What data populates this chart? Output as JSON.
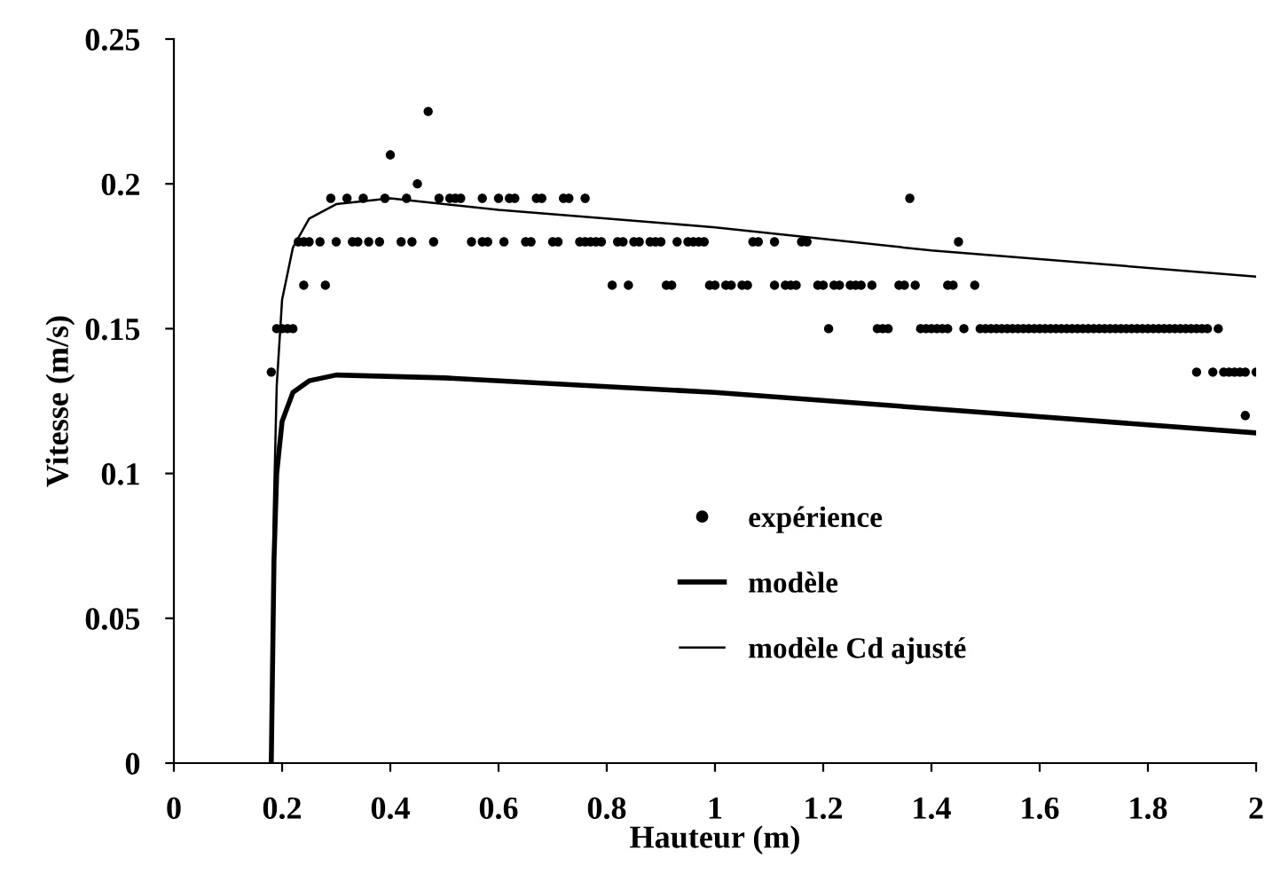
{
  "chart_data": {
    "type": "scatter",
    "xlabel": "Hauteur (m)",
    "ylabel": "Vitesse (m/s)",
    "xlim": [
      0,
      2
    ],
    "ylim": [
      0,
      0.25
    ],
    "xticks": [
      0,
      0.2,
      0.4,
      0.6,
      0.8,
      1,
      1.2,
      1.4,
      1.6,
      1.8,
      2
    ],
    "yticks": [
      0,
      0.05,
      0.1,
      0.15,
      0.2,
      0.25
    ],
    "grid": false,
    "legend": "bottom",
    "series": [
      {
        "name": "expérience",
        "color": "#000000",
        "marker": "circle",
        "x": [
          0.47,
          0.4,
          0.45,
          0.29,
          0.32,
          0.35,
          0.39,
          0.43,
          0.49,
          0.51,
          0.52,
          0.53,
          0.57,
          0.6,
          0.62,
          0.63,
          0.67,
          0.68,
          0.72,
          0.73,
          0.76,
          1.36,
          0.23,
          0.24,
          0.25,
          0.27,
          0.3,
          0.33,
          0.34,
          0.36,
          0.38,
          0.42,
          0.44,
          0.48,
          0.55,
          0.57,
          0.58,
          0.61,
          0.65,
          0.66,
          0.7,
          0.71,
          0.75,
          0.76,
          0.77,
          0.78,
          0.79,
          0.82,
          0.83,
          0.85,
          0.86,
          0.88,
          0.89,
          0.9,
          0.93,
          0.95,
          0.96,
          0.97,
          0.98,
          1.07,
          1.08,
          1.11,
          1.16,
          1.17,
          1.45,
          0.24,
          0.28,
          0.81,
          0.84,
          0.91,
          0.92,
          0.99,
          1.0,
          1.02,
          1.03,
          1.05,
          1.06,
          1.11,
          1.13,
          1.14,
          1.15,
          1.19,
          1.2,
          1.22,
          1.23,
          1.25,
          1.26,
          1.27,
          1.29,
          1.34,
          1.35,
          1.37,
          1.43,
          1.44,
          1.48,
          0.19,
          0.2,
          0.21,
          0.22,
          1.21,
          1.3,
          1.31,
          1.32,
          1.38,
          1.39,
          1.4,
          1.41,
          1.42,
          1.43,
          1.46,
          1.49,
          1.5,
          1.51,
          1.52,
          1.53,
          1.54,
          1.55,
          1.56,
          1.57,
          1.58,
          1.59,
          1.6,
          1.61,
          1.62,
          1.63,
          1.64,
          1.65,
          1.66,
          1.67,
          1.68,
          1.69,
          1.7,
          1.71,
          1.72,
          1.73,
          1.74,
          1.75,
          1.76,
          1.77,
          1.78,
          1.79,
          1.8,
          1.81,
          1.82,
          1.83,
          1.84,
          1.85,
          1.86,
          1.87,
          1.88,
          1.89,
          1.9,
          1.91,
          1.93,
          0.18,
          1.89,
          1.92,
          1.94,
          1.95,
          1.96,
          1.97,
          1.98,
          2.0,
          1.98
        ],
        "values": [
          0.225,
          0.21,
          0.2,
          0.195,
          0.195,
          0.195,
          0.195,
          0.195,
          0.195,
          0.195,
          0.195,
          0.195,
          0.195,
          0.195,
          0.195,
          0.195,
          0.195,
          0.195,
          0.195,
          0.195,
          0.195,
          0.195,
          0.18,
          0.18,
          0.18,
          0.18,
          0.18,
          0.18,
          0.18,
          0.18,
          0.18,
          0.18,
          0.18,
          0.18,
          0.18,
          0.18,
          0.18,
          0.18,
          0.18,
          0.18,
          0.18,
          0.18,
          0.18,
          0.18,
          0.18,
          0.18,
          0.18,
          0.18,
          0.18,
          0.18,
          0.18,
          0.18,
          0.18,
          0.18,
          0.18,
          0.18,
          0.18,
          0.18,
          0.18,
          0.18,
          0.18,
          0.18,
          0.18,
          0.18,
          0.18,
          0.165,
          0.165,
          0.165,
          0.165,
          0.165,
          0.165,
          0.165,
          0.165,
          0.165,
          0.165,
          0.165,
          0.165,
          0.165,
          0.165,
          0.165,
          0.165,
          0.165,
          0.165,
          0.165,
          0.165,
          0.165,
          0.165,
          0.165,
          0.165,
          0.165,
          0.165,
          0.165,
          0.165,
          0.165,
          0.165,
          0.15,
          0.15,
          0.15,
          0.15,
          0.15,
          0.15,
          0.15,
          0.15,
          0.15,
          0.15,
          0.15,
          0.15,
          0.15,
          0.15,
          0.15,
          0.15,
          0.15,
          0.15,
          0.15,
          0.15,
          0.15,
          0.15,
          0.15,
          0.15,
          0.15,
          0.15,
          0.15,
          0.15,
          0.15,
          0.15,
          0.15,
          0.15,
          0.15,
          0.15,
          0.15,
          0.15,
          0.15,
          0.15,
          0.15,
          0.15,
          0.15,
          0.15,
          0.15,
          0.15,
          0.15,
          0.15,
          0.15,
          0.15,
          0.15,
          0.15,
          0.15,
          0.15,
          0.15,
          0.15,
          0.15,
          0.15,
          0.15,
          0.15,
          0.15,
          0.135,
          0.135,
          0.135,
          0.135,
          0.135,
          0.135,
          0.135,
          0.135,
          0.135,
          0.12
        ]
      },
      {
        "name": "modèle",
        "type": "line",
        "color": "#000000",
        "line_style": "solid",
        "marker": "none",
        "x": [
          0.18,
          0.185,
          0.19,
          0.2,
          0.22,
          0.25,
          0.3,
          0.5,
          1.0,
          1.5,
          2.0
        ],
        "values": [
          0,
          0.07,
          0.1,
          0.118,
          0.128,
          0.132,
          0.134,
          0.133,
          0.128,
          0.121,
          0.114
        ]
      },
      {
        "name": "modèle Cd ajusté",
        "type": "line",
        "color": "#000000",
        "line_style": "solid",
        "marker": "none",
        "x": [
          0.18,
          0.185,
          0.19,
          0.2,
          0.22,
          0.25,
          0.3,
          0.4,
          0.6,
          1.0,
          1.4,
          2.0
        ],
        "values": [
          0,
          0.09,
          0.13,
          0.16,
          0.178,
          0.188,
          0.193,
          0.195,
          0.191,
          0.185,
          0.177,
          0.168
        ]
      }
    ]
  }
}
